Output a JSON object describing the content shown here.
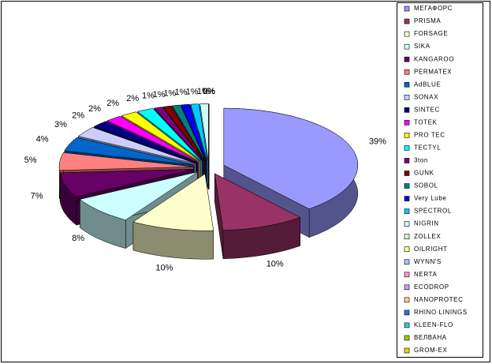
{
  "chart_data": {
    "type": "pie",
    "categories": [
      "МЕГАФОРС",
      "PRISMA",
      "FORSAGE",
      "SIKA",
      "KANGAROO",
      "PERMATEX",
      "AdBLUE",
      "SONAX",
      "SINTEC",
      "TOTEK",
      "PRO TEC",
      "TECTYL",
      "3ton",
      "GUNK",
      "SOBOL",
      "Very Lube",
      "SPECTROL",
      "NIGRIN",
      "ZOLLEX",
      "OILRIGHT",
      "WYNN'S",
      "NERTA",
      "ECODROP",
      "NANOPROTEC",
      "RHINO LININGS",
      "KLEEN-FLO",
      "ВЕЛВАНА",
      "GROM-EX"
    ],
    "values": [
      39,
      10,
      10,
      8,
      7,
      5,
      4,
      3,
      2,
      2,
      2,
      2,
      1,
      1,
      1,
      1,
      1,
      1,
      0,
      0,
      0,
      0,
      0,
      0,
      0,
      0,
      0,
      0
    ],
    "value_labels": [
      "39%",
      "10%",
      "10%",
      "8%",
      "7%",
      "5%",
      "4%",
      "3%",
      "2%",
      "2%",
      "2%",
      "2%",
      "1%",
      "1%",
      "1%",
      "1%",
      "1%",
      "1%",
      "0%",
      "0%",
      "0%",
      "0%",
      "0%",
      "0%",
      "0%",
      "0%",
      "0%",
      "0%"
    ],
    "colors": [
      "#9999FF",
      "#993366",
      "#FFFFCC",
      "#CCFFFF",
      "#660066",
      "#FF8080",
      "#0066CC",
      "#CCCCFF",
      "#000080",
      "#FF00FF",
      "#FFFF00",
      "#00FFFF",
      "#800080",
      "#800000",
      "#008080",
      "#0000FF",
      "#00CCFF",
      "#CCFFFF",
      "#CCFFCC",
      "#FFFF99",
      "#99CCFF",
      "#FF99CC",
      "#CC99FF",
      "#FFCC99",
      "#3366FF",
      "#33CCCC",
      "#99CC00",
      "#FFCC00"
    ],
    "legend": "right"
  }
}
